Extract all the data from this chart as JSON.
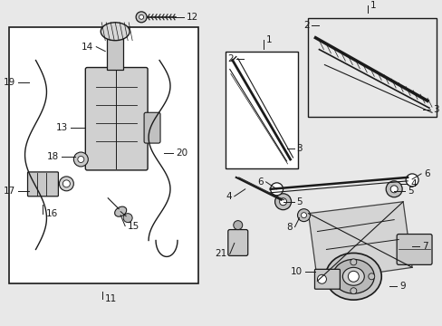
{
  "bg": "#e8e8e8",
  "lc": "#1a1a1a",
  "white": "#ffffff",
  "gray1": "#888888",
  "gray2": "#aaaaaa",
  "gray3": "#cccccc",
  "fs": 7.5
}
